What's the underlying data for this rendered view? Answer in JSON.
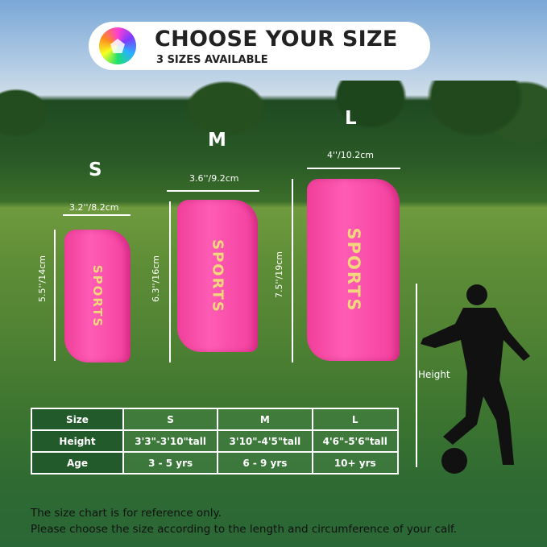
{
  "header": {
    "title": "CHOOSE YOUR SIZE",
    "subtitle": "3 SIZES AVAILABLE",
    "icon": "soccer-ball-icon"
  },
  "guards": [
    {
      "size": "S",
      "width": "3.2''/8.2cm",
      "length": "5.5''/14cm",
      "text": "SPORTS"
    },
    {
      "size": "M",
      "width": "3.6''/9.2cm",
      "length": "6.3''/16cm",
      "text": "SPORTS"
    },
    {
      "size": "L",
      "width": "4''/10.2cm",
      "length": "7.5''/19cm",
      "text": "SPORTS"
    }
  ],
  "height_label": "Height",
  "table": {
    "headers": [
      "Size",
      "S",
      "M",
      "L"
    ],
    "rows": [
      [
        "Height",
        "3'3\"-3'10\"tall",
        "3'10\"-4'5\"tall",
        "4'6\"-5'6\"tall"
      ],
      [
        "Age",
        "3 - 5 yrs",
        "6 - 9 yrs",
        "10+ yrs"
      ]
    ]
  },
  "footer": {
    "line1": "The size chart is for reference only.",
    "line2": "Please choose the size according to the length and circumference of your calf."
  },
  "colors": {
    "guard": "#f74aa8",
    "text_on_guard": "#f3d77c",
    "table_header": "#235a2b"
  }
}
